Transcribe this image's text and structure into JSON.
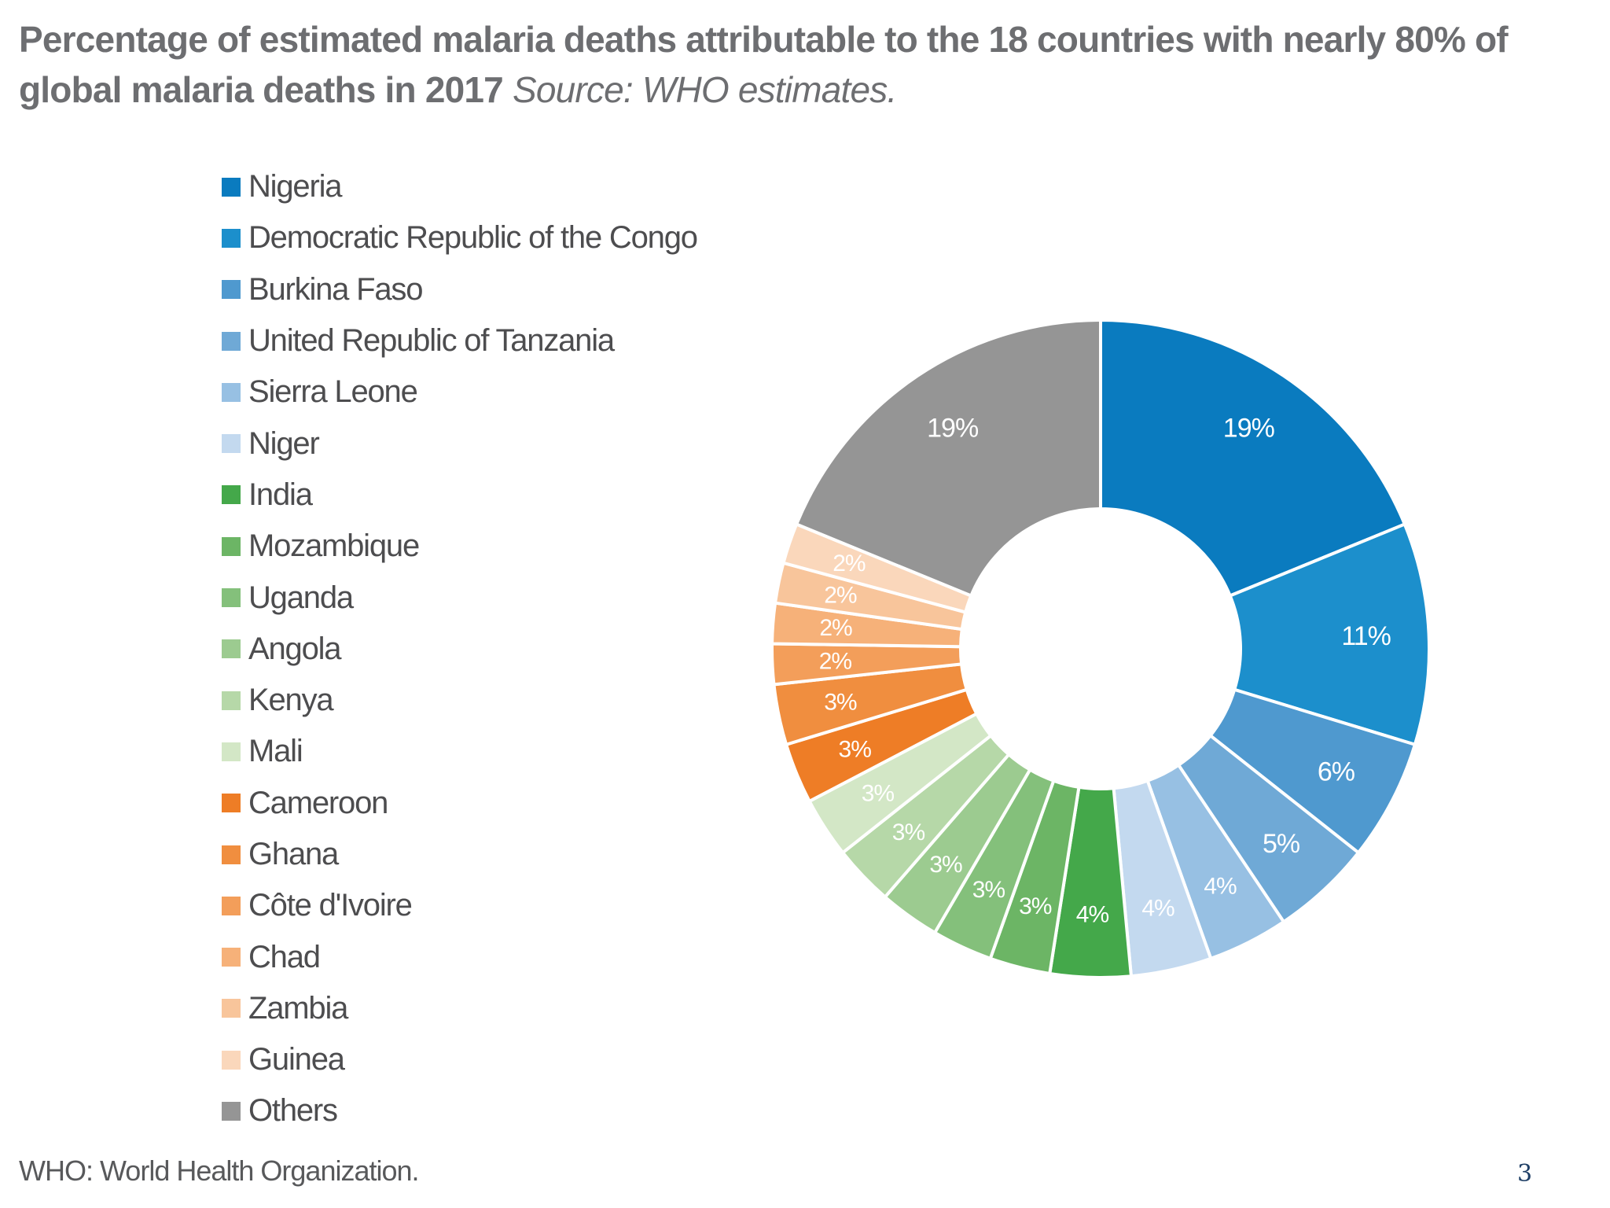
{
  "title": {
    "bold": "Percentage of estimated malaria deaths attributable to the 18 countries with nearly 80% of global malaria deaths in 2017",
    "source": "Source: WHO estimates."
  },
  "footnote": "WHO: World Health Organization.",
  "page_number": "3",
  "chart_data": {
    "type": "pie",
    "subtype": "donut",
    "title": "Percentage of estimated malaria deaths attributable to the 18 countries with nearly 80% of global malaria deaths in 2017",
    "source": "Source: WHO estimates.",
    "unit": "%",
    "legend_position": "left",
    "start": "top, clockwise",
    "slices": [
      {
        "name": "Nigeria",
        "value": 19,
        "label": "19%",
        "color": "#0a7bbf"
      },
      {
        "name": "Democratic Republic of the Congo",
        "value": 11,
        "label": "11%",
        "color": "#1c8fcc"
      },
      {
        "name": "Burkina Faso",
        "value": 6,
        "label": "6%",
        "color": "#4f99cf"
      },
      {
        "name": "United Republic of Tanzania",
        "value": 5,
        "label": "5%",
        "color": "#6fa9d6"
      },
      {
        "name": "Sierra Leone",
        "value": 4,
        "label": "4%",
        "color": "#97c0e3"
      },
      {
        "name": "Niger",
        "value": 4,
        "label": "4%",
        "color": "#c3d9ef"
      },
      {
        "name": "India",
        "value": 4,
        "label": "4%",
        "color": "#44a84a"
      },
      {
        "name": "Mozambique",
        "value": 3,
        "label": "3%",
        "color": "#6cb565"
      },
      {
        "name": "Uganda",
        "value": 3,
        "label": "3%",
        "color": "#84c07b"
      },
      {
        "name": "Angola",
        "value": 3,
        "label": "3%",
        "color": "#9ccb90"
      },
      {
        "name": "Kenya",
        "value": 3,
        "label": "3%",
        "color": "#b6d8a8"
      },
      {
        "name": "Mali",
        "value": 3,
        "label": "3%",
        "color": "#d3e7c6"
      },
      {
        "name": "Cameroon",
        "value": 3,
        "label": "3%",
        "color": "#ee7d26"
      },
      {
        "name": "Ghana",
        "value": 3,
        "label": "3%",
        "color": "#f08e3f"
      },
      {
        "name": "Côte d'Ivoire",
        "value": 2,
        "label": "2%",
        "color": "#f39e5a"
      },
      {
        "name": "Chad",
        "value": 2,
        "label": "2%",
        "color": "#f6b179"
      },
      {
        "name": "Zambia",
        "value": 2,
        "label": "2%",
        "color": "#f8c59b"
      },
      {
        "name": "Guinea",
        "value": 2,
        "label": "2%",
        "color": "#fad7bb"
      },
      {
        "name": "Others",
        "value": 19,
        "label": "19%",
        "color": "#959595"
      }
    ]
  }
}
